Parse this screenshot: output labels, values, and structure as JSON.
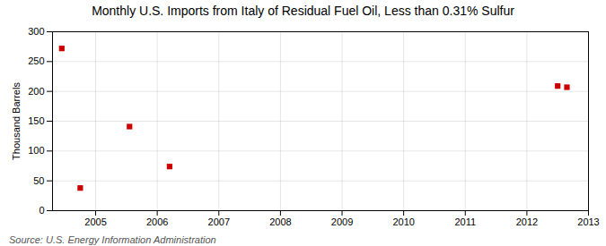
{
  "chart_data": {
    "type": "scatter",
    "title": "Monthly U.S. Imports from Italy of Residual Fuel Oil, Less than 0.31% Sulfur",
    "ylabel": "Thousand Barrels",
    "source": "Source: U.S. Energy Information Administration",
    "x": [
      2004.45,
      2004.75,
      2005.55,
      2006.2,
      2012.5,
      2012.65
    ],
    "values": [
      272,
      38,
      141,
      74,
      209,
      207
    ],
    "color": "#cc0000",
    "marker": "square",
    "xlim": [
      2004.3,
      2013.0
    ],
    "ylim": [
      0,
      300
    ],
    "xticks": [
      2005,
      2006,
      2007,
      2008,
      2009,
      2010,
      2011,
      2012,
      2013
    ],
    "yticks": [
      0,
      50,
      100,
      150,
      200,
      250,
      300
    ],
    "grid": true
  }
}
